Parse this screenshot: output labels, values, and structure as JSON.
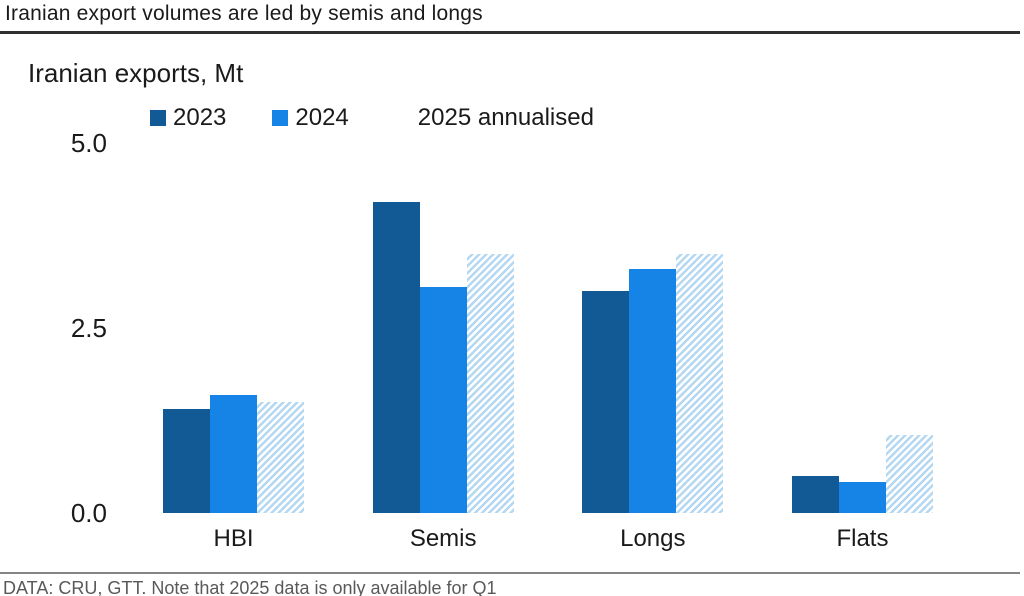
{
  "header": {
    "title": "Iranian export volumes are led by semis and longs"
  },
  "chart_data": {
    "type": "bar",
    "subtitle": "Iranian exports, Mt",
    "categories": [
      "HBI",
      "Semis",
      "Longs",
      "Flats"
    ],
    "series": [
      {
        "name": "2023",
        "color": "#115a96",
        "style": "solid",
        "values": [
          1.4,
          4.2,
          3.0,
          0.5
        ]
      },
      {
        "name": "2024",
        "color": "#1584e6",
        "style": "solid",
        "values": [
          1.6,
          3.05,
          3.3,
          0.42
        ]
      },
      {
        "name": "2025 annualised",
        "color": "#b5d8f2",
        "style": "hatched",
        "values": [
          1.5,
          3.5,
          3.5,
          1.05
        ]
      }
    ],
    "ylim": [
      0,
      5
    ],
    "yticks": [
      0.0,
      2.5,
      5.0
    ],
    "ytick_labels": [
      "0.0",
      "2.5",
      "5.0"
    ],
    "legend_position": "top",
    "grid": false
  },
  "footer": {
    "source": "DATA: CRU, GTT. Note that 2025 data is only available for Q1"
  }
}
